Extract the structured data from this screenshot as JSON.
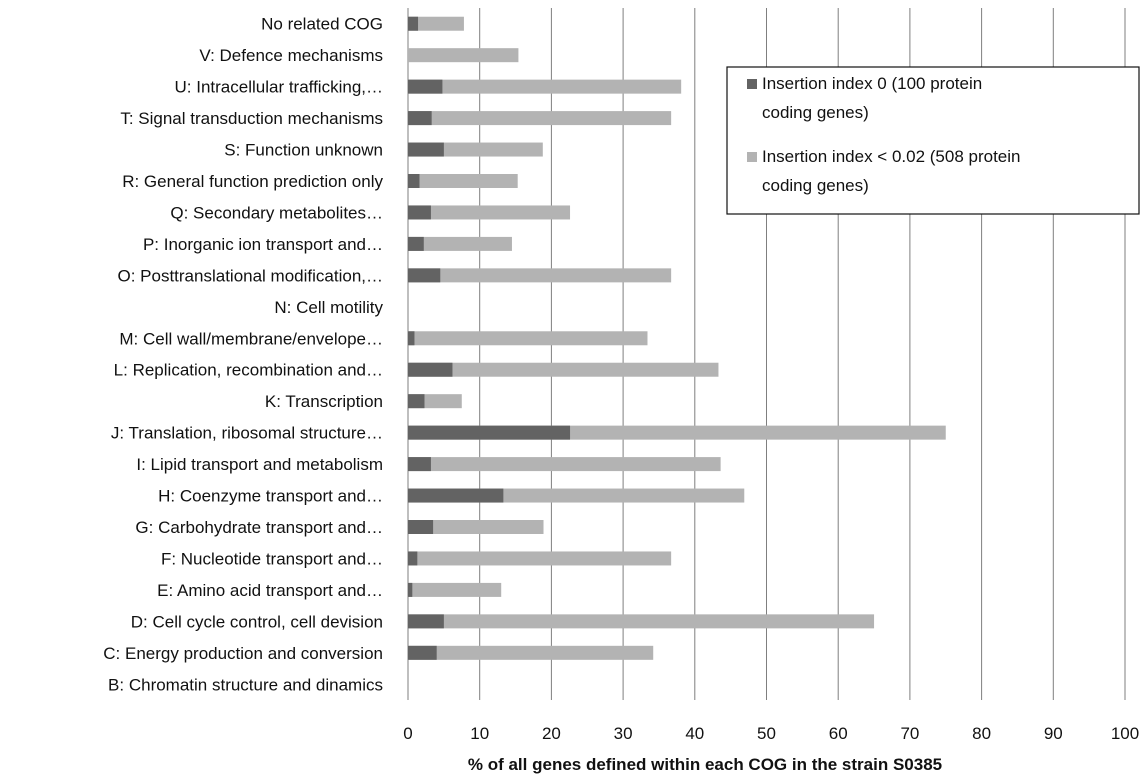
{
  "chart_data": {
    "type": "bar",
    "orientation": "horizontal",
    "stacked": false,
    "overlapped": true,
    "categories": [
      "No related COG",
      "V: Defence mechanisms",
      "U: Intracellular trafficking,…",
      "T: Signal transduction mechanisms",
      "S: Function unknown",
      "R: General function prediction only",
      "Q: Secondary metabolites…",
      "P: Inorganic ion transport and…",
      "O: Posttranslational modification,…",
      "N: Cell motility",
      "M: Cell wall/membrane/envelope…",
      "L: Replication, recombination and…",
      "K: Transcription",
      "J: Translation, ribosomal structure…",
      "I: Lipid transport and metabolism",
      "H: Coenzyme transport and…",
      "G: Carbohydrate transport and…",
      "F: Nucleotide transport and…",
      "E: Amino acid transport and…",
      "D: Cell cycle control, cell devision",
      "C: Energy production and conversion",
      "B: Chromatin structure and dinamics"
    ],
    "series": [
      {
        "name": "Insertion index < 0.02 (508 protein coding genes)",
        "color": "#b3b3b3",
        "values": [
          7.8,
          15.4,
          38.1,
          36.7,
          18.8,
          15.3,
          22.6,
          14.5,
          36.7,
          0,
          33.4,
          43.3,
          7.5,
          75.0,
          43.6,
          46.9,
          18.9,
          36.7,
          13.0,
          65.0,
          34.2,
          0
        ]
      },
      {
        "name": "Insertion index 0 (100 protein coding genes)",
        "color": "#636363",
        "values": [
          1.4,
          0,
          4.8,
          3.3,
          5.0,
          1.6,
          3.2,
          2.2,
          4.5,
          0,
          0.9,
          6.2,
          2.3,
          22.6,
          3.2,
          13.3,
          3.5,
          1.3,
          0.6,
          5.0,
          4.0,
          0
        ]
      }
    ],
    "xlabel": "% of all genes defined within each COG in the strain S0385",
    "ylabel": "",
    "xlim": [
      0,
      100
    ],
    "xticks": [
      "0",
      "10",
      "20",
      "30",
      "40",
      "50",
      "60",
      "70",
      "80",
      "90",
      "100"
    ],
    "grid": "vertical",
    "legend": {
      "placement": "top-right",
      "entries": [
        {
          "label_lines": [
            "Insertion index 0 (100 protein",
            "coding genes)"
          ],
          "color": "#636363"
        },
        {
          "label_lines": [
            "Insertion index < 0.02 (508 protein",
            "coding genes)"
          ],
          "color": "#b3b3b3"
        }
      ]
    }
  }
}
